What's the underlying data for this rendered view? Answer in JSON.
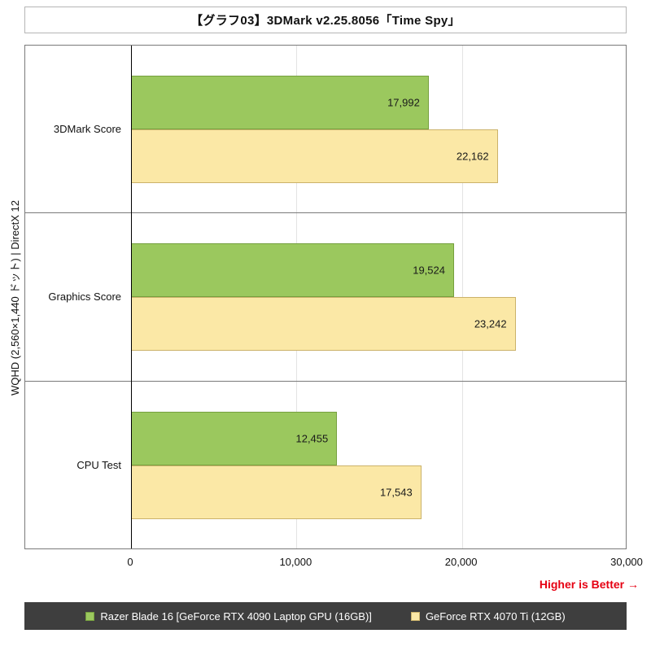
{
  "title": "【グラフ03】3DMark v2.25.8056「Time Spy」",
  "y_axis_label": "WQHD (2,560×1,440 ドット) | DirectX 12",
  "higher_is_better": "Higher is Better →",
  "colors": {
    "series1_fill": "#9BC85E",
    "series1_border": "#76A03F",
    "series2_fill": "#FBE8A6",
    "series2_border": "#CBB26A",
    "legend_background": "#3E3E3E",
    "note_red": "#E60012"
  },
  "chart_data": {
    "type": "bar",
    "orientation": "horizontal",
    "title": "【グラフ03】3DMark v2.25.8056「Time Spy」",
    "ylabel": "WQHD (2,560×1,440 ドット) | DirectX 12",
    "xlabel": "",
    "categories": [
      "3DMark Score",
      "Graphics Score",
      "CPU Test"
    ],
    "series": [
      {
        "name": "Razer Blade 16 [GeForce RTX 4090 Laptop GPU (16GB)]",
        "color": "#9BC85E",
        "border": "#76A03F",
        "values": [
          17992,
          19524,
          12455
        ],
        "labels": [
          "17,992",
          "19,524",
          "12,455"
        ]
      },
      {
        "name": "GeForce RTX 4070 Ti (12GB)",
        "color": "#FBE8A6",
        "border": "#CBB26A",
        "values": [
          22162,
          23242,
          17543
        ],
        "labels": [
          "22,162",
          "23,242",
          "17,543"
        ]
      }
    ],
    "xlim": [
      0,
      30000
    ],
    "x_tick_values": [
      0,
      10000,
      20000,
      30000
    ],
    "x_ticks": [
      "0",
      "10,000",
      "20,000",
      "30,000"
    ],
    "grid": "vertical-light",
    "legend_position": "bottom"
  }
}
